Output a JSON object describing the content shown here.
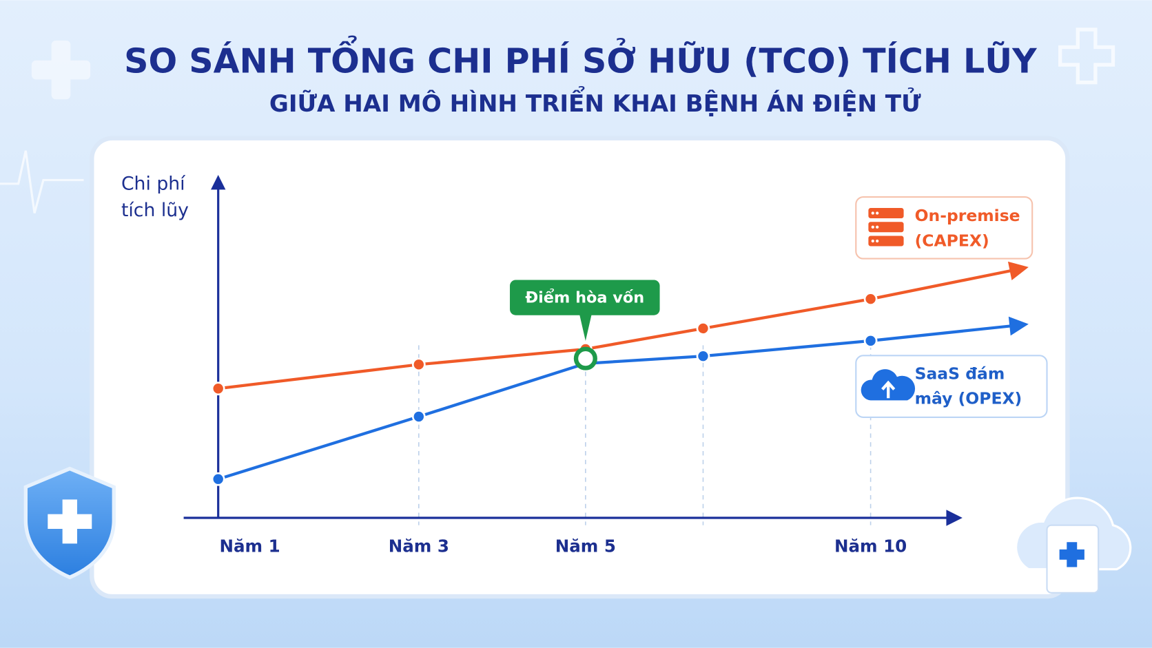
{
  "chart_data": {
    "type": "line",
    "title": "SO SÁNH TỔNG CHI PHÍ SỞ HỮU (TCO) TÍCH LŨY",
    "subtitle": "GIỮA HAI MÔ HÌNH TRIỂN KHAI BỆNH ÁN ĐIỆN TỬ",
    "y_label": "Chi phí tích lũy",
    "categories": [
      "Năm 1",
      "Năm 3",
      "Năm 5",
      null,
      "Năm 10"
    ],
    "series": [
      {
        "name": "On-premise (CAPEX)",
        "color": "#f05a28",
        "values": [
          38.7,
          45.9,
          50.5,
          56.7,
          65.5
        ]
      },
      {
        "name": "SaaS đám mây (OPEX)",
        "color": "#1f6fe0",
        "values": [
          11.6,
          30.3,
          46.2,
          48.4,
          53.0
        ]
      }
    ],
    "ylim": [
      0,
      100
    ],
    "annotation": {
      "text": "Điểm hòa vốn",
      "at": "Năm 5"
    }
  }
}
